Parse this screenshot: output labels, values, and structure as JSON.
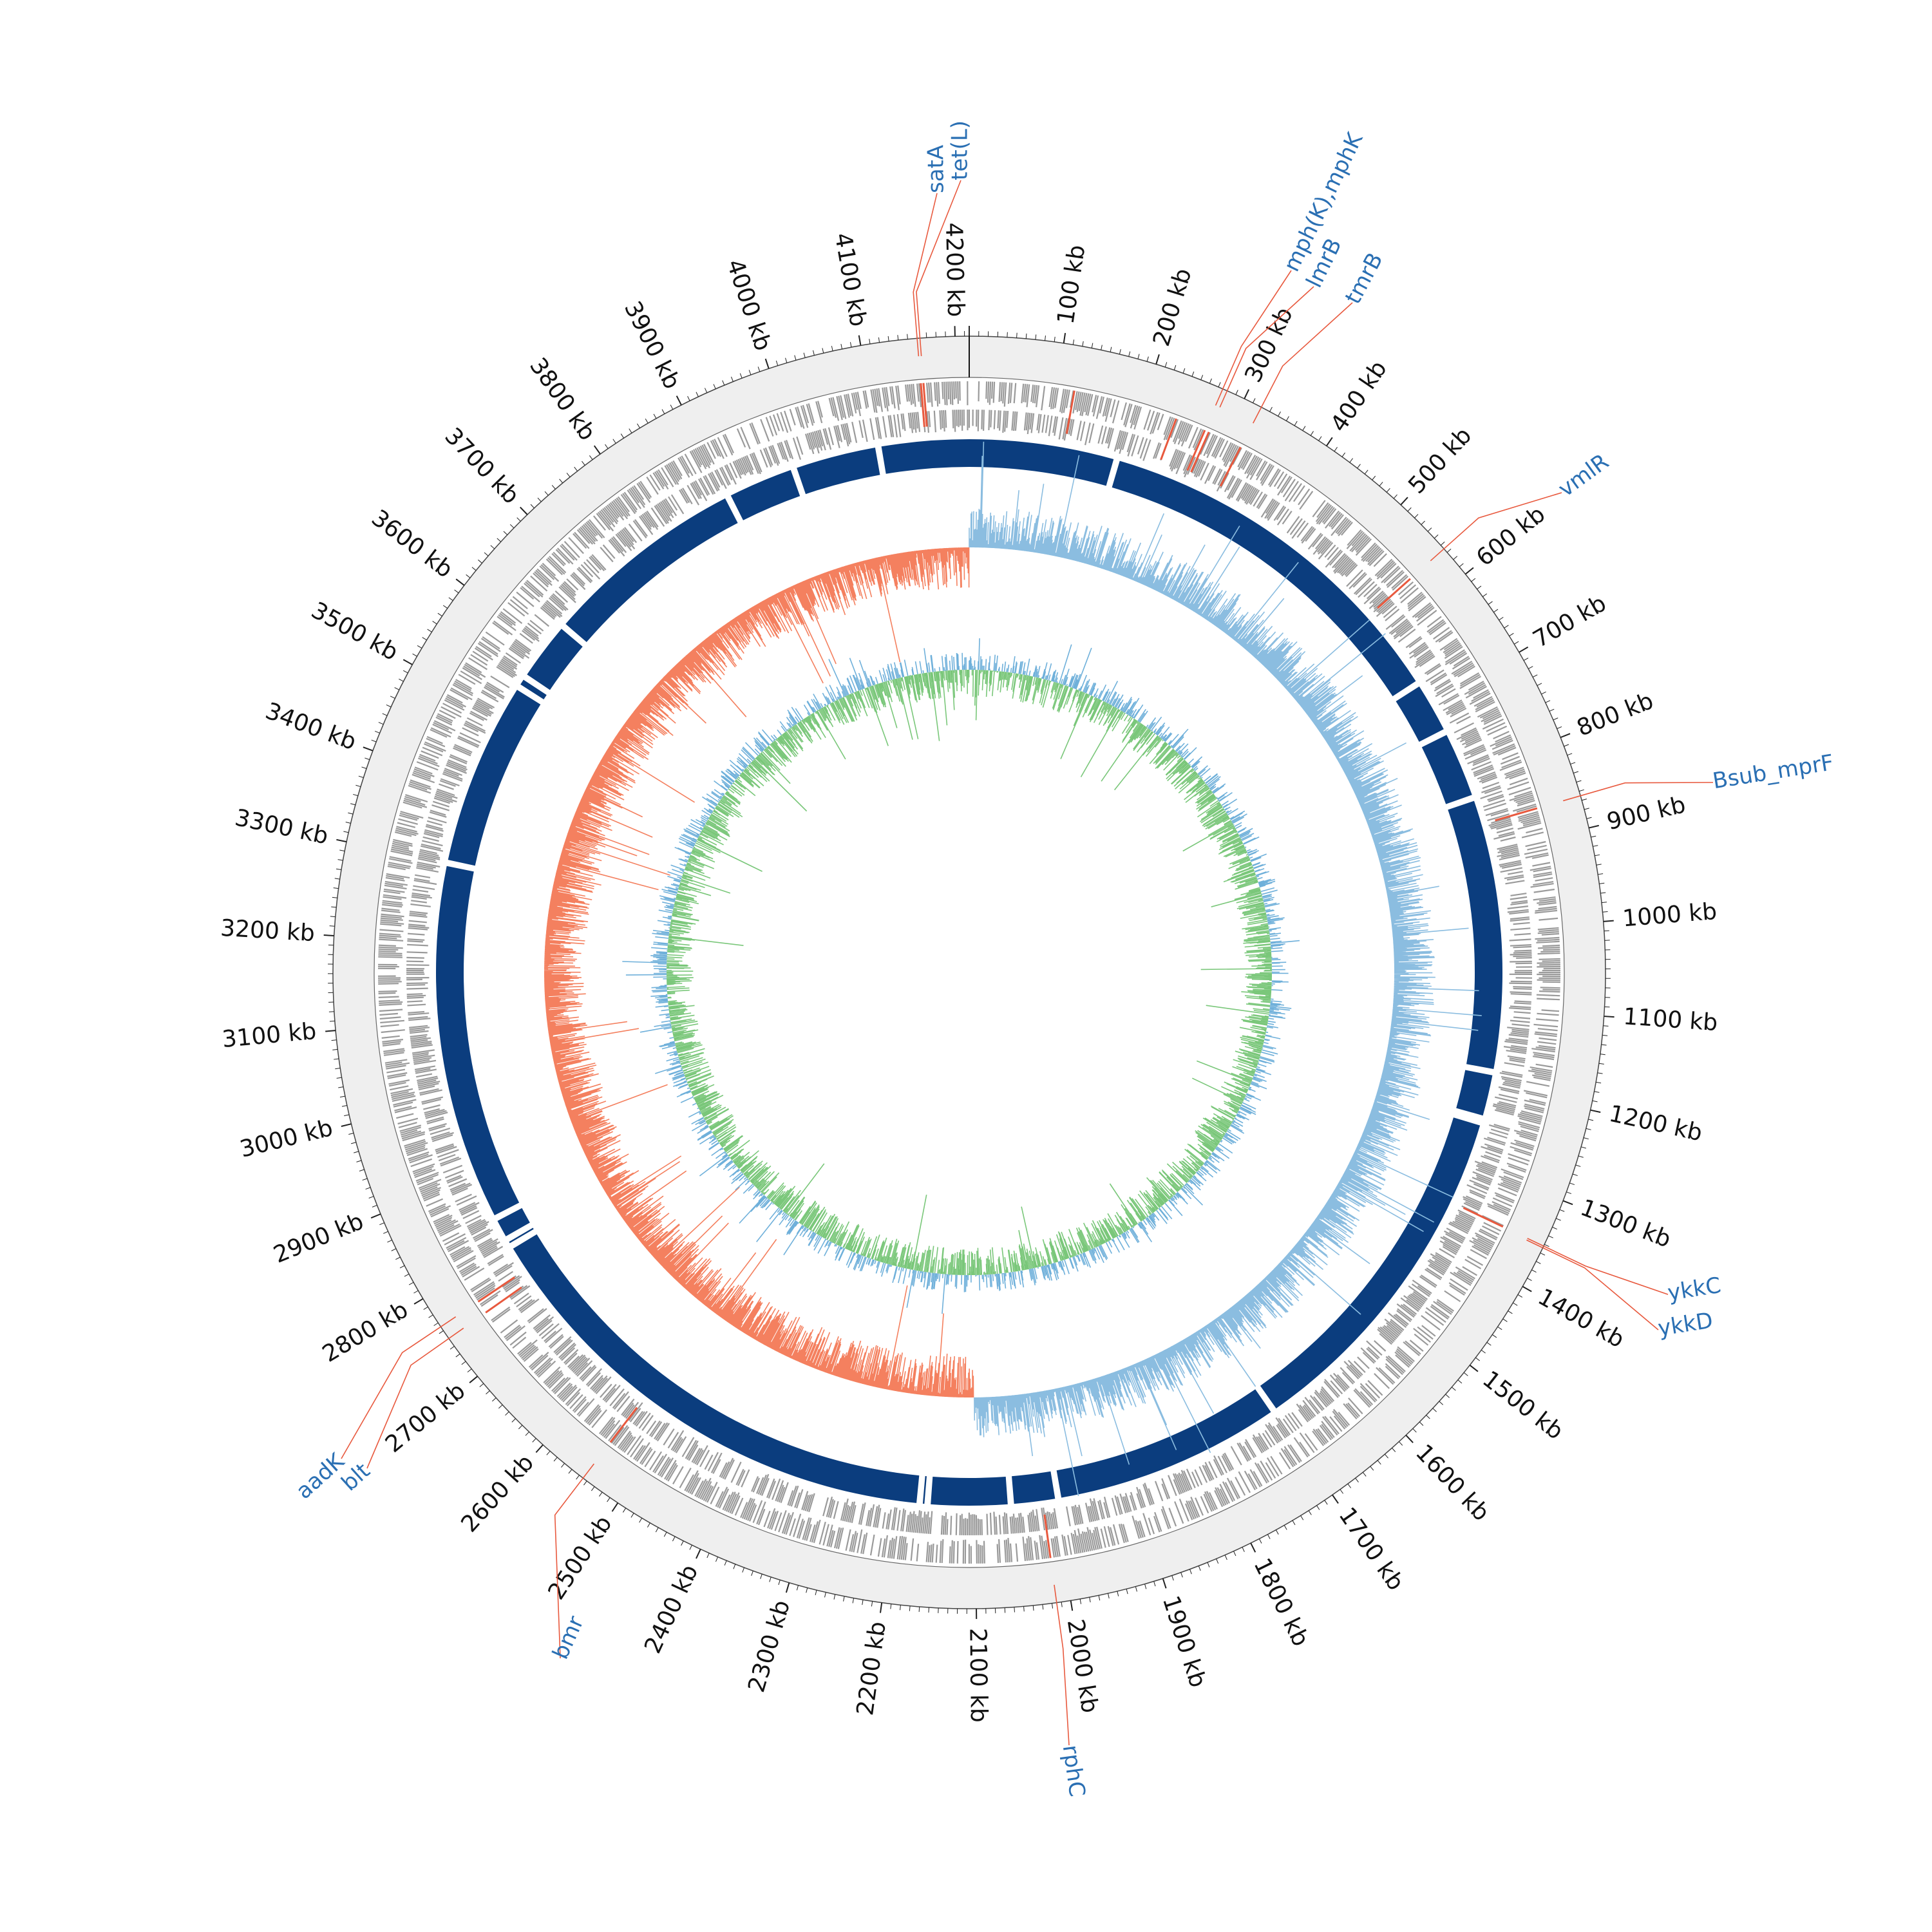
{
  "genome": {
    "length_kb": 4215,
    "tick_unit": "kb",
    "tick_step_kb": 100,
    "tick_labels": [
      "100 kb",
      "200 kb",
      "300 kb",
      "400 kb",
      "500 kb",
      "600 kb",
      "700 kb",
      "800 kb",
      "900 kb",
      "1000 kb",
      "1100 kb",
      "1200 kb",
      "1300 kb",
      "1400 kb",
      "1500 kb",
      "1600 kb",
      "1700 kb",
      "1800 kb",
      "1900 kb",
      "2000 kb",
      "2100 kb",
      "2200 kb",
      "2300 kb",
      "2400 kb",
      "2500 kb",
      "2600 kb",
      "2700 kb",
      "2800 kb",
      "2900 kb",
      "3000 kb",
      "3100 kb",
      "3200 kb",
      "3300 kb",
      "3400 kb",
      "3500 kb",
      "3600 kb",
      "3700 kb",
      "3800 kb",
      "3900 kb",
      "4000 kb",
      "4100 kb",
      "4200 kb"
    ]
  },
  "annotations": [
    {
      "label": "tet(L)",
      "position_kb": 4163
    },
    {
      "label": "satA",
      "position_kb": 4160
    },
    {
      "label": "mph(K),mphK",
      "position_kb": 275
    },
    {
      "label": "lmrB",
      "position_kb": 280
    },
    {
      "label": "tmrB",
      "position_kb": 320
    },
    {
      "label": "vmlR",
      "position_kb": 565
    },
    {
      "label": "Bsub_mprF",
      "position_kb": 865
    },
    {
      "label": "ykkC",
      "position_kb": 1352
    },
    {
      "label": "ykkD",
      "position_kb": 1354
    },
    {
      "label": "rphC",
      "position_kb": 2015
    },
    {
      "label": "bmr",
      "position_kb": 2545
    },
    {
      "label": "aadK",
      "position_kb": 2765
    },
    {
      "label": "blt",
      "position_kb": 2750
    }
  ],
  "tracks": {
    "backbone_gaps_kb": [
      188,
      670,
      740,
      830,
      1180,
      1240,
      1245,
      1700,
      1995,
      2055,
      2160,
      2170,
      2800,
      2810,
      2840,
      3300,
      3540,
      3555,
      3635,
      3900,
      3990,
      4100
    ]
  },
  "colors": {
    "ring_background": "#efefef",
    "gene_marks": "#9a9a9a",
    "highlight_marks": "#e8593e",
    "backbone": "#0b3d7e",
    "gc_positive": "#8bbde0",
    "gc_negative": "#f4805f",
    "skew_positive": "#6fb0da",
    "skew_negative": "#7ac77a",
    "label_blue": "#2a6fb3",
    "leader_line": "#e8593e"
  }
}
